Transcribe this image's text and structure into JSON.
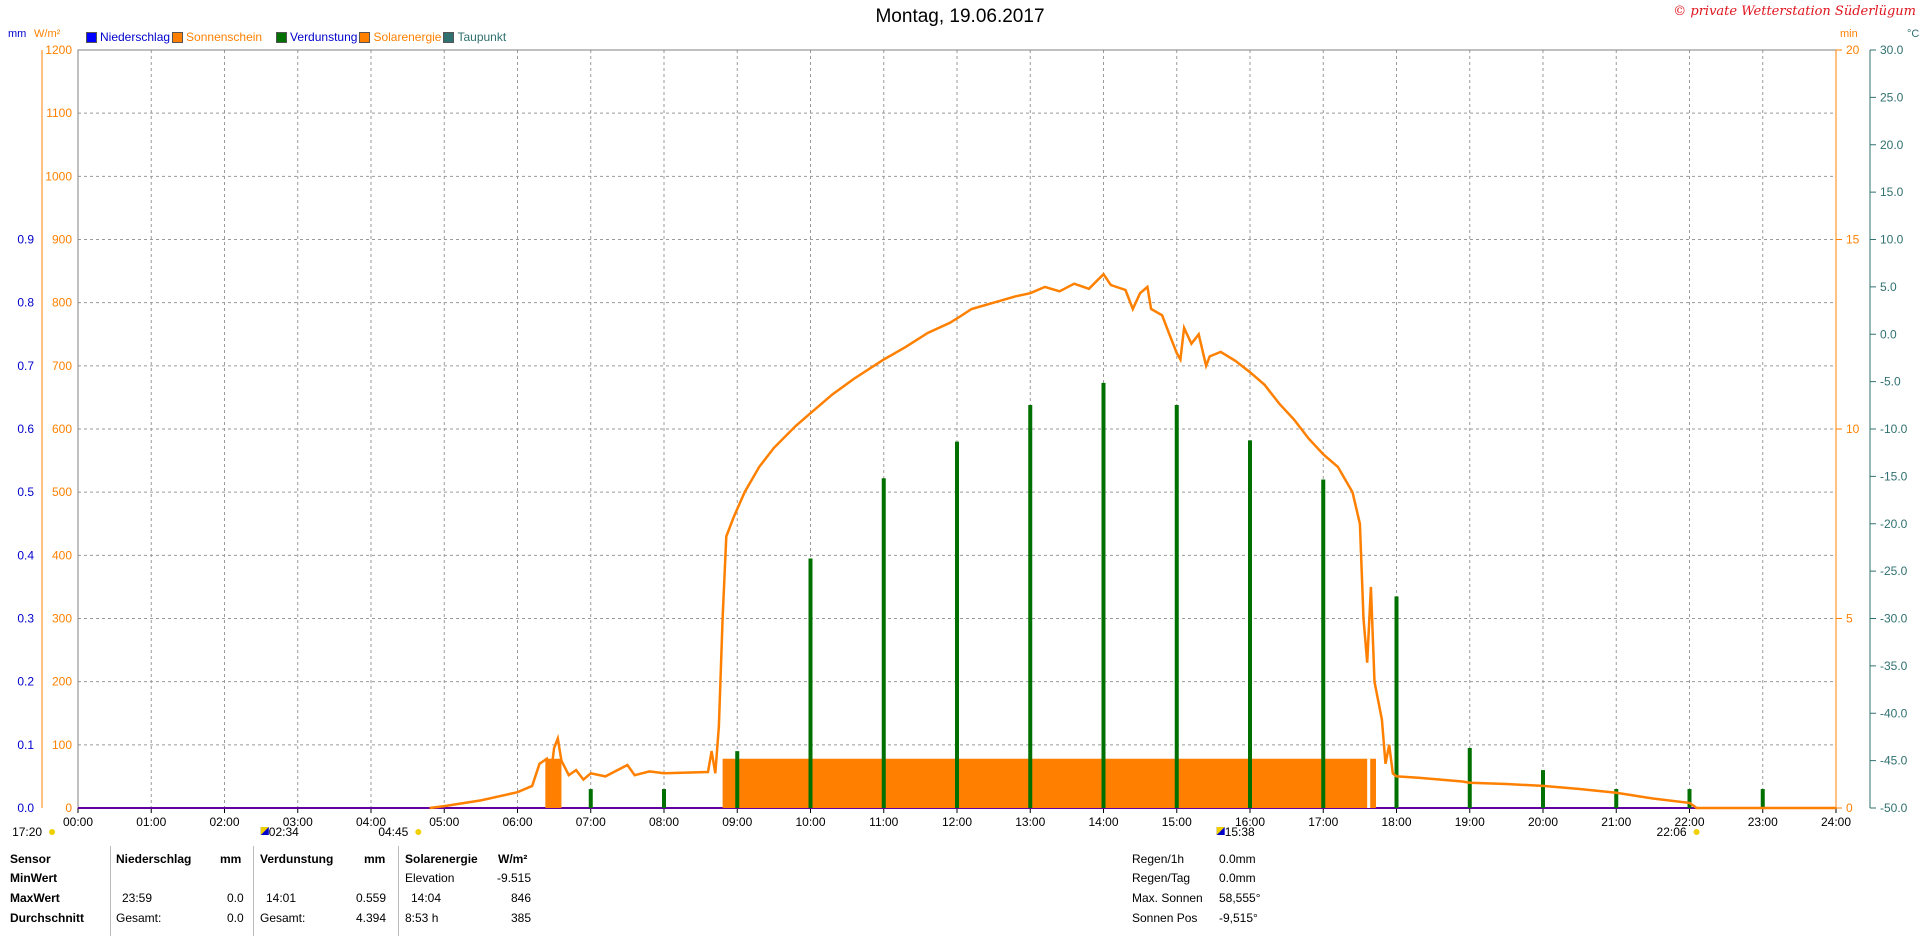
{
  "title": "Montag, 19.06.2017",
  "copyright": "© private Wetterstation Süderlügum",
  "legend": [
    {
      "label": "Niederschlag",
      "color": "#0000ff",
      "text_color": "#0000cc"
    },
    {
      "label": "Sonnenschein",
      "color": "#ff8000",
      "text_color": "#ff8000"
    },
    {
      "label": "Verdunstung",
      "color": "#007000",
      "text_color": "#0000cc"
    },
    {
      "label": "Solarenergie",
      "color": "#ff8000",
      "text_color": "#ff8000"
    },
    {
      "label": "Taupunkt",
      "color": "#307070",
      "text_color": "#307070"
    }
  ],
  "axis_units": {
    "mm": "mm",
    "wm2": "W/m²",
    "min": "min",
    "celsius": "°C"
  },
  "chart_data": {
    "type": "line",
    "x_ticks": [
      "00:00",
      "01:00",
      "02:00",
      "03:00",
      "04:00",
      "05:00",
      "06:00",
      "07:00",
      "08:00",
      "09:00",
      "10:00",
      "11:00",
      "12:00",
      "13:00",
      "14:00",
      "15:00",
      "16:00",
      "17:00",
      "18:00",
      "19:00",
      "20:00",
      "21:00",
      "22:00",
      "23:00",
      "24:00"
    ],
    "y_mm_ticks": [
      "0.0",
      "0.1",
      "0.2",
      "0.3",
      "0.4",
      "0.5",
      "0.6",
      "0.7",
      "0.8",
      "0.9"
    ],
    "y_wm2_ticks": [
      "0",
      "100",
      "200",
      "300",
      "400",
      "500",
      "600",
      "700",
      "800",
      "900",
      "1000",
      "1100",
      "1200"
    ],
    "y_min_ticks": [
      "0",
      "5",
      "10",
      "15",
      "20"
    ],
    "y_celsius_ticks": [
      "-50.0",
      "-45.0",
      "-40.0",
      "-35.0",
      "-30.0",
      "-25.0",
      "-20.0",
      "-15.0",
      "-10.0",
      "-5.0",
      "0.0",
      "5.0",
      "10.0",
      "15.0",
      "20.0",
      "25.0",
      "30.0"
    ],
    "ylim_wm2": [
      0,
      1200
    ],
    "ylim_min": [
      0,
      20
    ],
    "ylim_celsius": [
      -50,
      30
    ],
    "xlim_hours": [
      0,
      24
    ],
    "series": [
      {
        "name": "Solarenergie",
        "color": "#ff8000",
        "points_hour_wm2": [
          [
            4.8,
            0
          ],
          [
            5.0,
            3
          ],
          [
            5.5,
            12
          ],
          [
            6.0,
            25
          ],
          [
            6.2,
            35
          ],
          [
            6.3,
            70
          ],
          [
            6.4,
            78
          ],
          [
            6.45,
            50
          ],
          [
            6.5,
            95
          ],
          [
            6.55,
            110
          ],
          [
            6.6,
            75
          ],
          [
            6.7,
            52
          ],
          [
            6.8,
            60
          ],
          [
            6.9,
            45
          ],
          [
            7.0,
            55
          ],
          [
            7.2,
            50
          ],
          [
            7.5,
            68
          ],
          [
            7.6,
            52
          ],
          [
            7.8,
            58
          ],
          [
            8.0,
            55
          ],
          [
            8.3,
            56
          ],
          [
            8.6,
            57
          ],
          [
            8.65,
            90
          ],
          [
            8.7,
            55
          ],
          [
            8.75,
            130
          ],
          [
            8.8,
            300
          ],
          [
            8.85,
            430
          ],
          [
            8.95,
            460
          ],
          [
            9.1,
            500
          ],
          [
            9.3,
            540
          ],
          [
            9.5,
            570
          ],
          [
            9.8,
            605
          ],
          [
            10.0,
            625
          ],
          [
            10.3,
            655
          ],
          [
            10.6,
            680
          ],
          [
            11.0,
            710
          ],
          [
            11.3,
            730
          ],
          [
            11.6,
            752
          ],
          [
            11.9,
            768
          ],
          [
            12.0,
            775
          ],
          [
            12.2,
            790
          ],
          [
            12.5,
            800
          ],
          [
            12.8,
            810
          ],
          [
            13.0,
            815
          ],
          [
            13.2,
            825
          ],
          [
            13.4,
            818
          ],
          [
            13.6,
            830
          ],
          [
            13.8,
            822
          ],
          [
            14.0,
            845
          ],
          [
            14.1,
            828
          ],
          [
            14.3,
            820
          ],
          [
            14.4,
            790
          ],
          [
            14.5,
            815
          ],
          [
            14.6,
            825
          ],
          [
            14.65,
            790
          ],
          [
            14.8,
            780
          ],
          [
            14.9,
            750
          ],
          [
            15.0,
            720
          ],
          [
            15.05,
            710
          ],
          [
            15.1,
            760
          ],
          [
            15.2,
            735
          ],
          [
            15.3,
            750
          ],
          [
            15.4,
            700
          ],
          [
            15.45,
            715
          ],
          [
            15.6,
            722
          ],
          [
            15.8,
            708
          ],
          [
            16.0,
            690
          ],
          [
            16.2,
            670
          ],
          [
            16.4,
            640
          ],
          [
            16.6,
            615
          ],
          [
            16.8,
            585
          ],
          [
            17.0,
            560
          ],
          [
            17.2,
            540
          ],
          [
            17.4,
            500
          ],
          [
            17.5,
            450
          ],
          [
            17.55,
            300
          ],
          [
            17.6,
            230
          ],
          [
            17.65,
            350
          ],
          [
            17.7,
            200
          ],
          [
            17.8,
            140
          ],
          [
            17.85,
            70
          ],
          [
            17.9,
            100
          ],
          [
            17.95,
            55
          ],
          [
            18.0,
            50
          ],
          [
            18.3,
            48
          ],
          [
            18.6,
            45
          ],
          [
            18.9,
            42
          ],
          [
            19.0,
            40
          ],
          [
            19.5,
            38
          ],
          [
            20.0,
            35
          ],
          [
            20.5,
            30
          ],
          [
            21.0,
            24
          ],
          [
            21.5,
            15
          ],
          [
            22.0,
            8
          ],
          [
            22.1,
            0
          ],
          [
            24.0,
            0
          ]
        ]
      },
      {
        "name": "Sonnenschein",
        "color": "#ff8000",
        "segments_hour_min": [
          [
            6.38,
            6.6,
            1.3
          ],
          [
            8.8,
            17.72,
            1.3
          ]
        ]
      },
      {
        "name": "Verdunstung",
        "color": "#007000",
        "spikes_hour_wm2": [
          [
            7.0,
            30
          ],
          [
            8.0,
            30
          ],
          [
            9.0,
            90
          ],
          [
            10.0,
            395
          ],
          [
            11.0,
            522
          ],
          [
            12.0,
            580
          ],
          [
            13.0,
            638
          ],
          [
            14.0,
            673
          ],
          [
            15.0,
            638
          ],
          [
            16.0,
            582
          ],
          [
            17.0,
            520
          ],
          [
            18.0,
            335
          ],
          [
            19.0,
            95
          ],
          [
            20.0,
            60
          ],
          [
            21.0,
            30
          ],
          [
            22.0,
            30
          ],
          [
            23.0,
            30
          ]
        ]
      }
    ]
  },
  "markers": [
    {
      "label": "17:20",
      "hour_label": ""
    },
    {
      "label": "02:34"
    },
    {
      "label": "04:45"
    },
    {
      "label": "15:38"
    },
    {
      "label": "22:06"
    }
  ],
  "table": {
    "col_sensor": {
      "header": "Sensor",
      "rows": [
        "MinWert",
        "MaxWert",
        "Durchschnitt"
      ]
    },
    "col_nieder": {
      "header": "Niederschlag",
      "unit": "mm",
      "maxwert_time": "23:59",
      "maxwert_val": "0.0",
      "gesamt_lbl": "Gesamt:",
      "gesamt_val": "0.0"
    },
    "col_verd": {
      "header": "Verdunstung",
      "unit": "mm",
      "maxwert_time": "14:01",
      "maxwert_val": "0.559",
      "gesamt_lbl": "Gesamt:",
      "gesamt_val": "4.394"
    },
    "col_solar": {
      "header": "Solarenergie",
      "unit": "W/m²",
      "min_lbl": "Elevation",
      "min_val": "-9.515",
      "max_time": "14:04",
      "max_val": "846",
      "avg_lbl": "8:53 h",
      "avg_val": "385"
    },
    "right": [
      {
        "label": "Regen/1h",
        "value": "0.0mm"
      },
      {
        "label": "Regen/Tag",
        "value": "0.0mm"
      },
      {
        "label": "Max. Sonnen",
        "value": "58,555°"
      },
      {
        "label": "Sonnen Pos",
        "value": "-9,515°"
      }
    ]
  }
}
